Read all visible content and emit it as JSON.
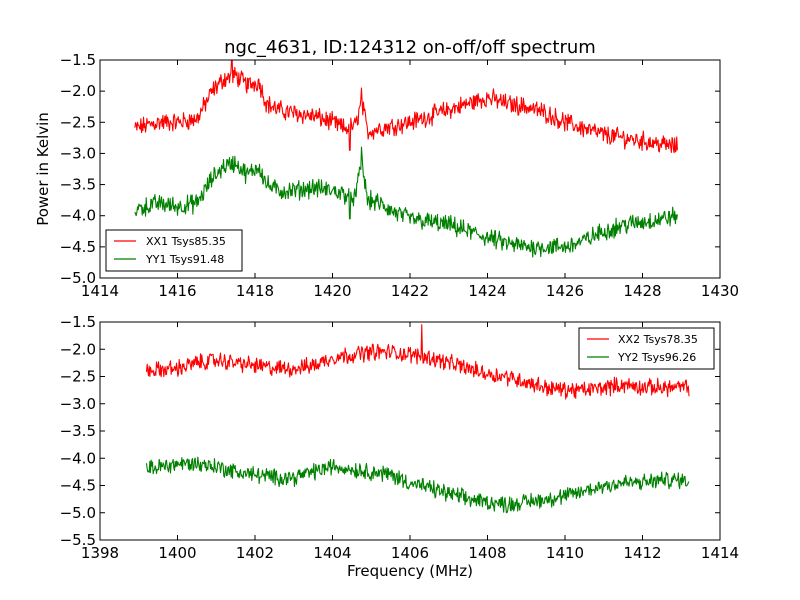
{
  "chart_data": [
    {
      "type": "line",
      "title": "ngc_4631, ID:124312 on-off/off spectrum",
      "xlabel": "",
      "ylabel": "Power in Kelvin",
      "xlim": [
        1414,
        1430
      ],
      "ylim": [
        -5.0,
        -1.5
      ],
      "xticks": [
        1414,
        1416,
        1418,
        1420,
        1422,
        1424,
        1426,
        1428,
        1430
      ],
      "yticks": [
        -5.0,
        -4.5,
        -4.0,
        -3.5,
        -3.0,
        -2.5,
        -2.0,
        -1.5
      ],
      "xtick_labels": [
        "1414",
        "1416",
        "1418",
        "1420",
        "1422",
        "1424",
        "1426",
        "1428",
        "1430"
      ],
      "ytick_labels": [
        "−5.0",
        "−4.5",
        "−4.0",
        "−3.5",
        "−3.0",
        "−2.5",
        "−2.0",
        "−1.5"
      ],
      "legend_position": "lower-left",
      "series": [
        {
          "name": "XX1 Tsys85.35",
          "color": "#ff0000",
          "noise": 0.12,
          "x": [
            1414.9,
            1415.5,
            1416.0,
            1416.5,
            1416.9,
            1417.2,
            1417.5,
            1417.8,
            1418.1,
            1418.3,
            1418.6,
            1419.0,
            1419.5,
            1420.0,
            1420.3,
            1420.6,
            1420.75,
            1420.9,
            1421.2,
            1421.6,
            1422.0,
            1422.5,
            1423.0,
            1423.5,
            1424.0,
            1424.5,
            1425.0,
            1425.5,
            1426.0,
            1426.5,
            1427.0,
            1427.5,
            1428.0,
            1428.5,
            1428.9
          ],
          "y": [
            -2.6,
            -2.5,
            -2.5,
            -2.45,
            -2.0,
            -1.8,
            -1.75,
            -1.9,
            -1.85,
            -2.2,
            -2.3,
            -2.35,
            -2.4,
            -2.5,
            -2.6,
            -2.55,
            -2.15,
            -2.65,
            -2.6,
            -2.55,
            -2.5,
            -2.4,
            -2.3,
            -2.2,
            -2.1,
            -2.2,
            -2.25,
            -2.35,
            -2.5,
            -2.6,
            -2.7,
            -2.75,
            -2.8,
            -2.85,
            -2.9
          ]
        },
        {
          "name": "YY1 Tsys91.48",
          "color": "#008000",
          "noise": 0.12,
          "x": [
            1414.9,
            1415.5,
            1416.0,
            1416.5,
            1416.9,
            1417.2,
            1417.5,
            1417.8,
            1418.1,
            1418.3,
            1418.6,
            1419.0,
            1419.5,
            1420.0,
            1420.3,
            1420.6,
            1420.75,
            1420.9,
            1421.2,
            1421.6,
            1422.0,
            1422.5,
            1423.0,
            1423.5,
            1424.0,
            1424.5,
            1425.0,
            1425.5,
            1426.0,
            1426.5,
            1427.0,
            1427.5,
            1428.0,
            1428.5,
            1428.9
          ],
          "y": [
            -3.9,
            -3.8,
            -3.85,
            -3.8,
            -3.4,
            -3.2,
            -3.15,
            -3.35,
            -3.2,
            -3.5,
            -3.6,
            -3.6,
            -3.55,
            -3.6,
            -3.65,
            -3.7,
            -3.1,
            -3.75,
            -3.8,
            -3.95,
            -4.05,
            -4.1,
            -4.15,
            -4.25,
            -4.35,
            -4.45,
            -4.5,
            -4.5,
            -4.5,
            -4.4,
            -4.25,
            -4.15,
            -4.1,
            -4.05,
            -4.0
          ]
        }
      ],
      "spikes": [
        {
          "series": 0,
          "x": 1417.4,
          "y": -1.5
        },
        {
          "series": 0,
          "x": 1420.45,
          "y": -2.95
        },
        {
          "series": 0,
          "x": 1420.75,
          "y": -1.95
        },
        {
          "series": 1,
          "x": 1420.75,
          "y": -2.9
        },
        {
          "series": 1,
          "x": 1420.45,
          "y": -4.05
        }
      ]
    },
    {
      "type": "line",
      "title": "",
      "xlabel": "Frequency (MHz)",
      "ylabel": "",
      "xlim": [
        1398,
        1414
      ],
      "ylim": [
        -5.5,
        -1.5
      ],
      "xticks": [
        1398,
        1400,
        1402,
        1404,
        1406,
        1408,
        1410,
        1412,
        1414
      ],
      "yticks": [
        -5.5,
        -5.0,
        -4.5,
        -4.0,
        -3.5,
        -3.0,
        -2.5,
        -2.0,
        -1.5
      ],
      "xtick_labels": [
        "1398",
        "1400",
        "1402",
        "1404",
        "1406",
        "1408",
        "1410",
        "1412",
        "1414"
      ],
      "ytick_labels": [
        "−5.5",
        "−5.0",
        "−4.5",
        "−4.0",
        "−3.5",
        "−3.0",
        "−2.5",
        "−2.0",
        "−1.5"
      ],
      "legend_position": "upper-right",
      "series": [
        {
          "name": "XX2 Tsys78.35",
          "color": "#ff0000",
          "noise": 0.12,
          "x": [
            1399.2,
            1400.0,
            1400.5,
            1401.0,
            1401.5,
            1402.0,
            1402.5,
            1403.0,
            1403.5,
            1404.0,
            1404.5,
            1405.0,
            1405.5,
            1406.0,
            1406.5,
            1407.0,
            1407.5,
            1408.0,
            1408.5,
            1409.0,
            1409.5,
            1410.0,
            1410.5,
            1411.0,
            1411.5,
            1412.0,
            1412.5,
            1413.2
          ],
          "y": [
            -2.4,
            -2.35,
            -2.25,
            -2.2,
            -2.25,
            -2.3,
            -2.35,
            -2.35,
            -2.3,
            -2.15,
            -2.1,
            -2.05,
            -2.05,
            -2.1,
            -2.15,
            -2.25,
            -2.35,
            -2.45,
            -2.5,
            -2.6,
            -2.7,
            -2.75,
            -2.75,
            -2.7,
            -2.65,
            -2.7,
            -2.7,
            -2.7
          ]
        },
        {
          "name": "YY2 Tsys96.26",
          "color": "#008000",
          "noise": 0.12,
          "x": [
            1399.2,
            1400.0,
            1400.5,
            1401.0,
            1401.5,
            1402.0,
            1402.5,
            1403.0,
            1403.5,
            1404.0,
            1404.5,
            1405.0,
            1405.5,
            1406.0,
            1406.5,
            1407.0,
            1407.5,
            1408.0,
            1408.5,
            1409.0,
            1409.5,
            1410.0,
            1410.5,
            1411.0,
            1411.5,
            1412.0,
            1412.5,
            1413.2
          ],
          "y": [
            -4.2,
            -4.1,
            -4.1,
            -4.15,
            -4.25,
            -4.3,
            -4.35,
            -4.35,
            -4.25,
            -4.15,
            -4.2,
            -4.25,
            -4.3,
            -4.45,
            -4.55,
            -4.65,
            -4.75,
            -4.8,
            -4.85,
            -4.8,
            -4.75,
            -4.7,
            -4.6,
            -4.5,
            -4.45,
            -4.45,
            -4.4,
            -4.4
          ]
        }
      ],
      "spikes": [
        {
          "series": 0,
          "x": 1406.3,
          "y": -1.55
        }
      ]
    }
  ]
}
